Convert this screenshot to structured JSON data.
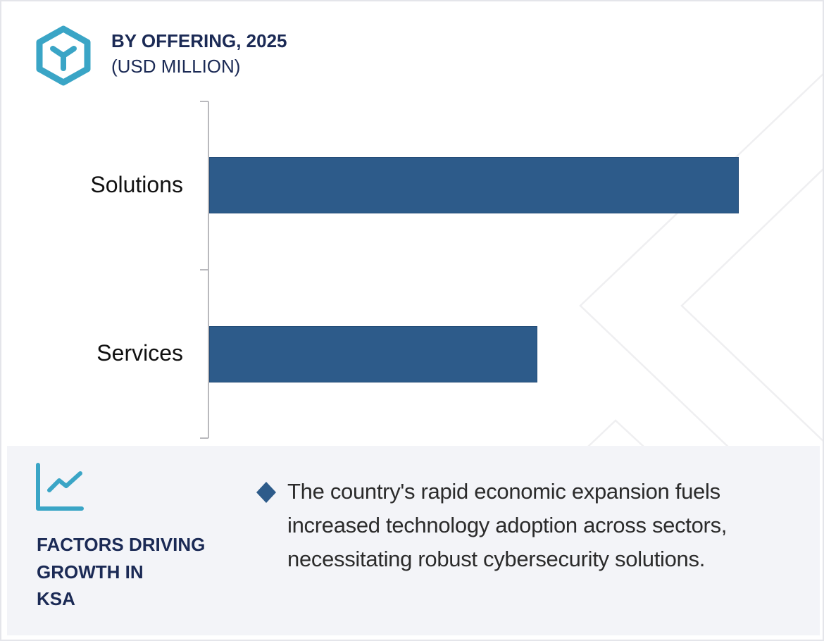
{
  "header": {
    "title": "BY OFFERING, 2025",
    "subtitle": "(USD MILLION)",
    "icon": "hexagon-cube-icon"
  },
  "colors": {
    "bar": "#2d5b8a",
    "accent_teal": "#3aa5c6",
    "title_navy": "#1b2a55",
    "panel_bg": "#f3f4f8"
  },
  "chart_data": {
    "type": "bar",
    "orientation": "horizontal",
    "title": "BY OFFERING, 2025",
    "subtitle": "(USD MILLION)",
    "categories": [
      "Solutions",
      "Services"
    ],
    "values": [
      100,
      62
    ],
    "value_note": "Relative bar lengths only; no numeric axis or data labels shown (Services ≈ 62% of Solutions)",
    "xlabel": "",
    "ylabel": "",
    "grid": false,
    "legend": null,
    "bar_color": "#2d5b8a"
  },
  "chart": {
    "bars": [
      {
        "label": "Solutions",
        "value": 100
      },
      {
        "label": "Services",
        "value": 62
      }
    ]
  },
  "footer": {
    "icon": "trend-chart-icon",
    "heading": "FACTORS DRIVING GROWTH IN KSA",
    "heading_lines": [
      "FACTORS DRIVING",
      "GROWTH IN",
      "KSA"
    ],
    "bullet_icon": "diamond-bullet-icon",
    "bullets": [
      "The country's rapid economic expansion fuels increased technology adoption across sectors, necessitating robust cybersecurity solutions."
    ]
  }
}
